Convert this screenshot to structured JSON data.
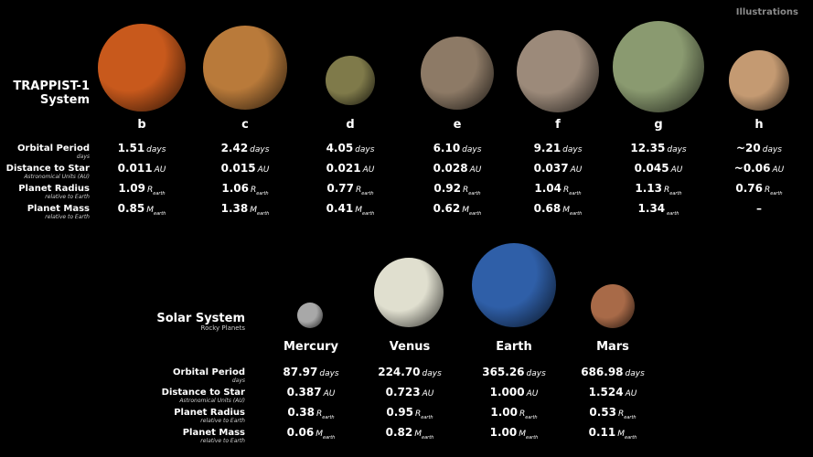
{
  "corner_label": "Illustrations",
  "row_labels": [
    {
      "main": "Orbital Period",
      "sub": "days"
    },
    {
      "main": "Distance to Star",
      "sub": "Astronomical Units (AU)"
    },
    {
      "main": "Planet Radius",
      "sub": "relative to Earth"
    },
    {
      "main": "Planet Mass",
      "sub": "relative to Earth"
    }
  ],
  "trappist": {
    "title_line1": "TRAPPIST-1",
    "title_line2": "System",
    "planets": [
      {
        "name": "b",
        "color": "#c8591c",
        "period": "1.51",
        "distance": "0.011",
        "radius": "1.09",
        "mass": "0.85"
      },
      {
        "name": "c",
        "color": "#b97a3a",
        "period": "2.42",
        "distance": "0.015",
        "radius": "1.06",
        "mass": "1.38"
      },
      {
        "name": "d",
        "color": "#7f7a4a",
        "period": "4.05",
        "distance": "0.021",
        "radius": "0.77",
        "mass": "0.41"
      },
      {
        "name": "e",
        "color": "#8d7a66",
        "period": "6.10",
        "distance": "0.028",
        "radius": "0.92",
        "mass": "0.62"
      },
      {
        "name": "f",
        "color": "#9c8a7a",
        "period": "9.21",
        "distance": "0.037",
        "radius": "1.04",
        "mass": "0.68"
      },
      {
        "name": "g",
        "color": "#8a9a70",
        "period": "12.35",
        "distance": "0.045",
        "radius": "1.13",
        "mass": "1.34",
        "mass_unit_partial": true
      },
      {
        "name": "h",
        "color": "#c49a72",
        "period": "~20",
        "distance": "~0.06",
        "radius": "0.76",
        "mass": "–",
        "no_mass_unit": true
      }
    ]
  },
  "solar": {
    "title": "Solar System",
    "subtitle": "Rocky Planets",
    "planets": [
      {
        "name": "Mercury",
        "color": "#a8a8a8",
        "period": "87.97",
        "distance": "0.387",
        "radius": "0.38",
        "mass": "0.06"
      },
      {
        "name": "Venus",
        "color": "#e0dfcf",
        "period": "224.70",
        "distance": "0.723",
        "radius": "0.95",
        "mass": "0.82"
      },
      {
        "name": "Earth",
        "color": "#2f5fa8",
        "period": "365.26",
        "distance": "1.000",
        "radius": "1.00",
        "mass": "1.00"
      },
      {
        "name": "Mars",
        "color": "#a86a48",
        "period": "686.98",
        "distance": "1.524",
        "radius": "0.53",
        "mass": "0.11"
      }
    ]
  },
  "units": {
    "period": "days",
    "distance": "AU",
    "radius": "R",
    "mass": "M",
    "sub": "earth"
  }
}
